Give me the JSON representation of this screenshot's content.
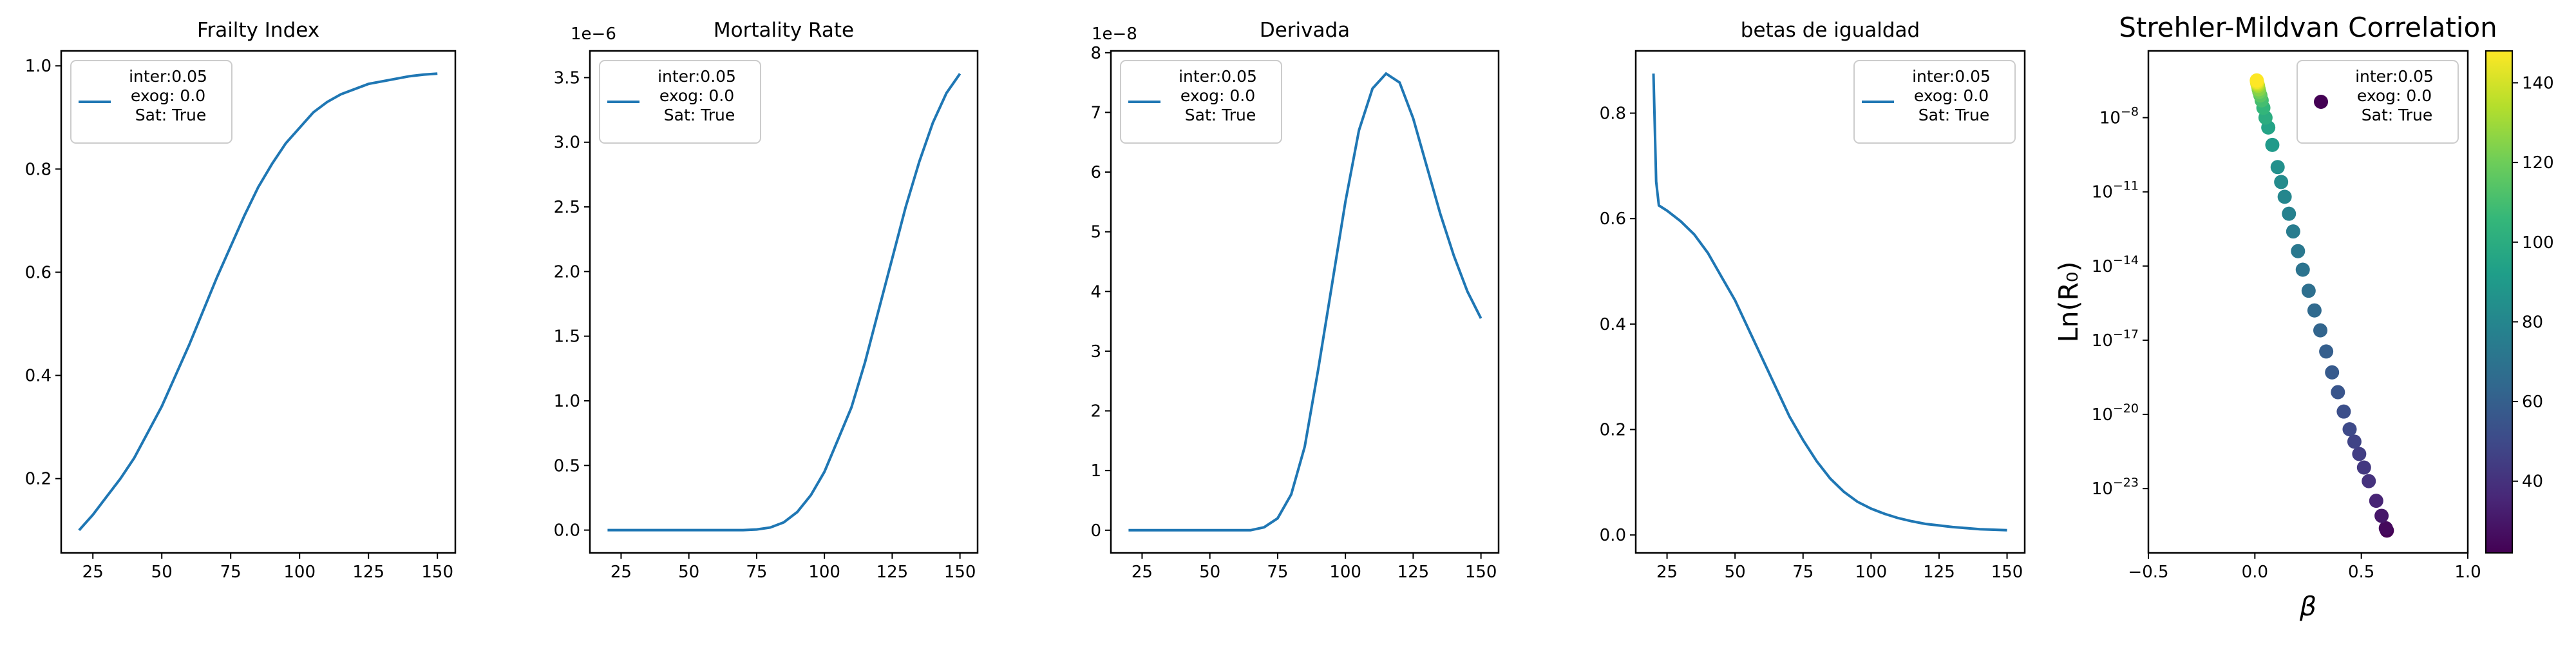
{
  "chart_data": [
    {
      "type": "line",
      "title": "Frailty Index",
      "x": [
        20,
        25,
        30,
        35,
        40,
        45,
        50,
        55,
        60,
        65,
        70,
        75,
        80,
        85,
        90,
        95,
        100,
        105,
        110,
        115,
        120,
        125,
        130,
        135,
        140,
        145,
        150
      ],
      "series": [
        {
          "name": "inter:0.05\nexog: 0.0\nSat: True",
          "color": "#1f77b4",
          "values": [
            0.1,
            0.13,
            0.165,
            0.2,
            0.24,
            0.29,
            0.34,
            0.4,
            0.46,
            0.525,
            0.59,
            0.65,
            0.71,
            0.765,
            0.81,
            0.85,
            0.88,
            0.91,
            0.93,
            0.945,
            0.955,
            0.965,
            0.97,
            0.975,
            0.98,
            0.983,
            0.985
          ]
        }
      ],
      "xlim": [
        13.5,
        156.5
      ],
      "xticks": [
        25,
        50,
        75,
        100,
        125,
        150
      ],
      "ylim": [
        0.056,
        1.029
      ],
      "yticks": [
        0.2,
        0.4,
        0.6,
        0.8,
        {
          "value": 1.0,
          "label": "1.0"
        }
      ],
      "legend": "upper left",
      "grid": false
    },
    {
      "type": "line",
      "title": "Mortality Rate",
      "offset_text": "1e−6",
      "x": [
        20,
        25,
        30,
        35,
        40,
        45,
        50,
        55,
        60,
        65,
        70,
        75,
        80,
        85,
        90,
        95,
        100,
        105,
        110,
        115,
        120,
        125,
        130,
        135,
        140,
        145,
        150
      ],
      "series": [
        {
          "name": "inter:0.05\nexog: 0.0\nSat: True",
          "color": "#1f77b4",
          "values": [
            0,
            0,
            0,
            0,
            0,
            0,
            0,
            0,
            0,
            0,
            0,
            0.005,
            0.02,
            0.06,
            0.14,
            0.27,
            0.45,
            0.7,
            0.95,
            1.3,
            1.7,
            2.1,
            2.5,
            2.85,
            3.15,
            3.38,
            3.53
          ]
        }
      ],
      "xlim": [
        13.5,
        156.5
      ],
      "xticks": [
        25,
        50,
        75,
        100,
        125,
        150
      ],
      "ylim": [
        -0.1765,
        3.7065
      ],
      "yticks": [
        {
          "value": 0,
          "label": "0.0"
        },
        0.5,
        {
          "value": 1,
          "label": "1.0"
        },
        1.5,
        {
          "value": 2,
          "label": "2.0"
        },
        2.5,
        {
          "value": 3,
          "label": "3.0"
        },
        3.5
      ],
      "legend": "upper left",
      "grid": false
    },
    {
      "type": "line",
      "title": "Derivada",
      "offset_text": "1e−8",
      "x": [
        20,
        25,
        30,
        35,
        40,
        45,
        50,
        55,
        60,
        65,
        70,
        75,
        80,
        85,
        90,
        95,
        100,
        105,
        110,
        115,
        120,
        125,
        130,
        135,
        140,
        145,
        150
      ],
      "series": [
        {
          "name": "inter:0.05\nexog: 0.0\nSat: True",
          "color": "#1f77b4",
          "values": [
            0,
            0,
            0,
            0,
            0,
            0,
            0,
            0,
            0,
            0,
            0.05,
            0.2,
            0.6,
            1.4,
            2.7,
            4.1,
            5.5,
            6.7,
            7.4,
            7.65,
            7.5,
            6.9,
            6.1,
            5.3,
            4.6,
            4.0,
            3.55
          ]
        }
      ],
      "xlim": [
        13.5,
        156.5
      ],
      "xticks": [
        25,
        50,
        75,
        100,
        125,
        150
      ],
      "ylim": [
        -0.38,
        8.03
      ],
      "yticks": [
        0,
        1,
        2,
        3,
        4,
        5,
        6,
        7,
        8
      ],
      "legend": "upper left",
      "grid": false
    },
    {
      "type": "line",
      "title": "betas de igualdad",
      "x": [
        20,
        21,
        22,
        25,
        30,
        35,
        40,
        45,
        50,
        55,
        60,
        65,
        70,
        75,
        80,
        85,
        90,
        95,
        100,
        105,
        110,
        115,
        120,
        125,
        130,
        135,
        140,
        145,
        150
      ],
      "series": [
        {
          "name": "inter:0.05\nexog: 0.0\nSat: True",
          "color": "#1f77b4",
          "values": [
            0.875,
            0.67,
            0.625,
            0.615,
            0.595,
            0.57,
            0.535,
            0.49,
            0.445,
            0.39,
            0.335,
            0.28,
            0.225,
            0.18,
            0.14,
            0.107,
            0.082,
            0.063,
            0.05,
            0.04,
            0.032,
            0.026,
            0.021,
            0.018,
            0.015,
            0.013,
            0.011,
            0.01,
            0.009
          ]
        }
      ],
      "xlim": [
        13.5,
        156.5
      ],
      "xticks": [
        25,
        50,
        75,
        100,
        125,
        150
      ],
      "ylim": [
        -0.034,
        0.918
      ],
      "yticks": [
        {
          "value": 0,
          "label": "0.0"
        },
        0.2,
        0.4,
        0.6,
        0.8
      ],
      "legend": "upper right",
      "grid": false
    },
    {
      "type": "scatter",
      "title": "Strehler-Mildvan Correlation",
      "xlabel": "β",
      "ylabel": "Ln(R₀)",
      "series": [
        {
          "name": "inter:0.05\nexog: 0.0\nSat: True",
          "x": [
            0.62,
            0.615,
            0.595,
            0.57,
            0.535,
            0.5125,
            0.49,
            0.4675,
            0.445,
            0.4175,
            0.39,
            0.3625,
            0.335,
            0.3075,
            0.28,
            0.2525,
            0.225,
            0.2025,
            0.18,
            0.16,
            0.14,
            0.1235,
            0.107,
            0.082,
            0.063,
            0.05,
            0.04,
            0.032,
            0.026,
            0.021,
            0.018,
            0.015,
            0.013,
            0.011,
            0.01,
            0.009
          ],
          "values": [
            2e-25,
            2.5e-25,
            7.9e-25,
            3.2e-24,
            2e-23,
            7.1e-23,
            2.5e-22,
            7.9e-22,
            2.5e-21,
            1.3e-20,
            7.9e-20,
            5e-19,
            3.5e-18,
            2.5e-17,
            1.6e-16,
            1e-15,
            7.1e-15,
            4e-14,
            2.5e-13,
            1.3e-12,
            6.3e-12,
            2.5e-11,
            1e-10,
            7.9e-10,
            4e-09,
            1e-08,
            2.5e-08,
            5e-08,
            7.9e-08,
            1.1e-07,
            1.4e-07,
            1.9e-07,
            2.2e-07,
            2.5e-07,
            2.8e-07,
            3.2e-07
          ],
          "c": [
            20,
            25,
            30,
            35,
            40,
            42.5,
            45,
            47.5,
            50,
            52.5,
            55,
            57.5,
            60,
            62.5,
            65,
            67.5,
            70,
            72.5,
            75,
            77.5,
            80,
            82.5,
            85,
            90,
            95,
            100,
            105,
            110,
            115,
            120,
            125,
            130,
            135,
            140,
            145,
            150
          ]
        }
      ],
      "colormap": "viridis",
      "clim": [
        22,
        148
      ],
      "cticks": [
        40,
        60,
        80,
        100,
        120,
        140
      ],
      "xlim": [
        -0.5,
        1.0
      ],
      "xticks": [
        {
          "value": -0.5,
          "label": "−0.5"
        },
        {
          "value": 0,
          "label": "0.0"
        },
        0.5,
        {
          "value": 1,
          "label": "1.0"
        }
      ],
      "ylog": true,
      "ylim": [
        2.5e-26,
        5e-06
      ],
      "yticks": [
        {
          "value": 1e-08,
          "label": "10−8"
        },
        {
          "value": 1e-11,
          "label": "10−11"
        },
        {
          "value": 1e-14,
          "label": "10−14"
        },
        {
          "value": 1e-17,
          "label": "10−17"
        },
        {
          "value": 1e-20,
          "label": "10−20"
        },
        {
          "value": 1e-23,
          "label": "10−23"
        }
      ],
      "legend": "upper right",
      "grid": false
    }
  ]
}
